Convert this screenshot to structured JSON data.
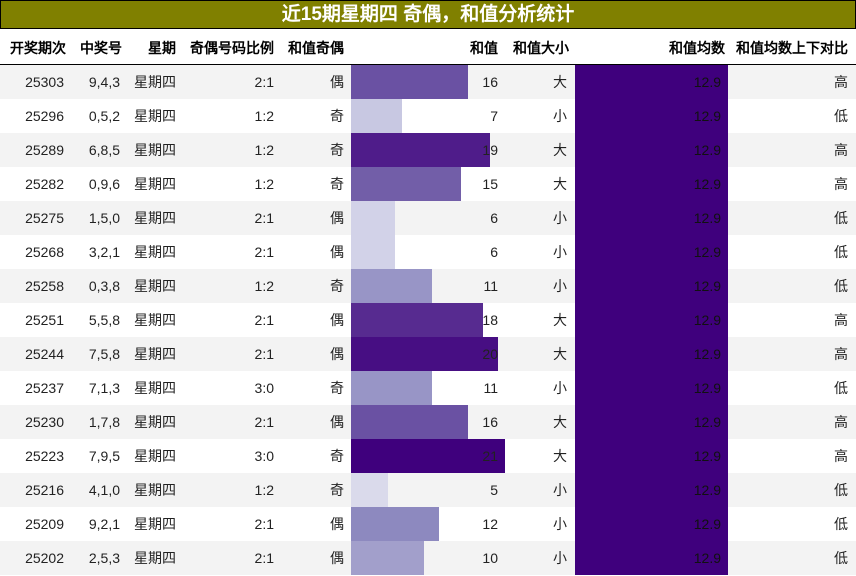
{
  "title": "近15期星期四 奇偶，和值分析统计",
  "colors": {
    "title_bg": "#808000",
    "avg_bg": "#3f007d",
    "row_alt": "#f3f3f3"
  },
  "columns": [
    "开奖期次",
    "中奖号",
    "星期",
    "奇偶号码比例",
    "和值奇偶",
    "和值",
    "和值大小",
    "和值均数",
    "和值均数上下对比"
  ],
  "rows": [
    {
      "issue": "25303",
      "numbers": "9,4,3",
      "weekday": "星期四",
      "ratio": "2:1",
      "parity": "偶",
      "sum": "16",
      "size": "大",
      "avg": "12.9",
      "compare": "高",
      "bar_color": "#6a51a3"
    },
    {
      "issue": "25296",
      "numbers": "0,5,2",
      "weekday": "星期四",
      "ratio": "1:2",
      "parity": "奇",
      "sum": "7",
      "size": "小",
      "avg": "12.9",
      "compare": "低",
      "bar_color": "#c8c8e2"
    },
    {
      "issue": "25289",
      "numbers": "6,8,5",
      "weekday": "星期四",
      "ratio": "1:2",
      "parity": "奇",
      "sum": "19",
      "size": "大",
      "avg": "12.9",
      "compare": "高",
      "bar_color": "#4f1c8a"
    },
    {
      "issue": "25282",
      "numbers": "0,9,6",
      "weekday": "星期四",
      "ratio": "1:2",
      "parity": "奇",
      "sum": "15",
      "size": "大",
      "avg": "12.9",
      "compare": "高",
      "bar_color": "#725ea8"
    },
    {
      "issue": "25275",
      "numbers": "1,5,0",
      "weekday": "星期四",
      "ratio": "2:1",
      "parity": "偶",
      "sum": "6",
      "size": "小",
      "avg": "12.9",
      "compare": "低",
      "bar_color": "#d2d2e8"
    },
    {
      "issue": "25268",
      "numbers": "3,2,1",
      "weekday": "星期四",
      "ratio": "2:1",
      "parity": "偶",
      "sum": "6",
      "size": "小",
      "avg": "12.9",
      "compare": "低",
      "bar_color": "#d2d2e8"
    },
    {
      "issue": "25258",
      "numbers": "0,3,8",
      "weekday": "星期四",
      "ratio": "1:2",
      "parity": "奇",
      "sum": "11",
      "size": "小",
      "avg": "12.9",
      "compare": "低",
      "bar_color": "#9895c6"
    },
    {
      "issue": "25251",
      "numbers": "5,5,8",
      "weekday": "星期四",
      "ratio": "2:1",
      "parity": "偶",
      "sum": "18",
      "size": "大",
      "avg": "12.9",
      "compare": "高",
      "bar_color": "#572b90"
    },
    {
      "issue": "25244",
      "numbers": "7,5,8",
      "weekday": "星期四",
      "ratio": "2:1",
      "parity": "偶",
      "sum": "20",
      "size": "大",
      "avg": "12.9",
      "compare": "高",
      "bar_color": "#470e83"
    },
    {
      "issue": "25237",
      "numbers": "7,1,3",
      "weekday": "星期四",
      "ratio": "3:0",
      "parity": "奇",
      "sum": "11",
      "size": "小",
      "avg": "12.9",
      "compare": "低",
      "bar_color": "#9895c6"
    },
    {
      "issue": "25230",
      "numbers": "1,7,8",
      "weekday": "星期四",
      "ratio": "2:1",
      "parity": "偶",
      "sum": "16",
      "size": "大",
      "avg": "12.9",
      "compare": "高",
      "bar_color": "#6a51a3"
    },
    {
      "issue": "25223",
      "numbers": "7,9,5",
      "weekday": "星期四",
      "ratio": "3:0",
      "parity": "奇",
      "sum": "21",
      "size": "大",
      "avg": "12.9",
      "compare": "高",
      "bar_color": "#3f007d"
    },
    {
      "issue": "25216",
      "numbers": "4,1,0",
      "weekday": "星期四",
      "ratio": "1:2",
      "parity": "奇",
      "sum": "5",
      "size": "小",
      "avg": "12.9",
      "compare": "低",
      "bar_color": "#dadaeb"
    },
    {
      "issue": "25209",
      "numbers": "9,2,1",
      "weekday": "星期四",
      "ratio": "2:1",
      "parity": "偶",
      "sum": "12",
      "size": "小",
      "avg": "12.9",
      "compare": "低",
      "bar_color": "#8d89bf"
    },
    {
      "issue": "25202",
      "numbers": "2,5,3",
      "weekday": "星期四",
      "ratio": "2:1",
      "parity": "偶",
      "sum": "10",
      "size": "小",
      "avg": "12.9",
      "compare": "低",
      "bar_color": "#a29fcb"
    }
  ]
}
